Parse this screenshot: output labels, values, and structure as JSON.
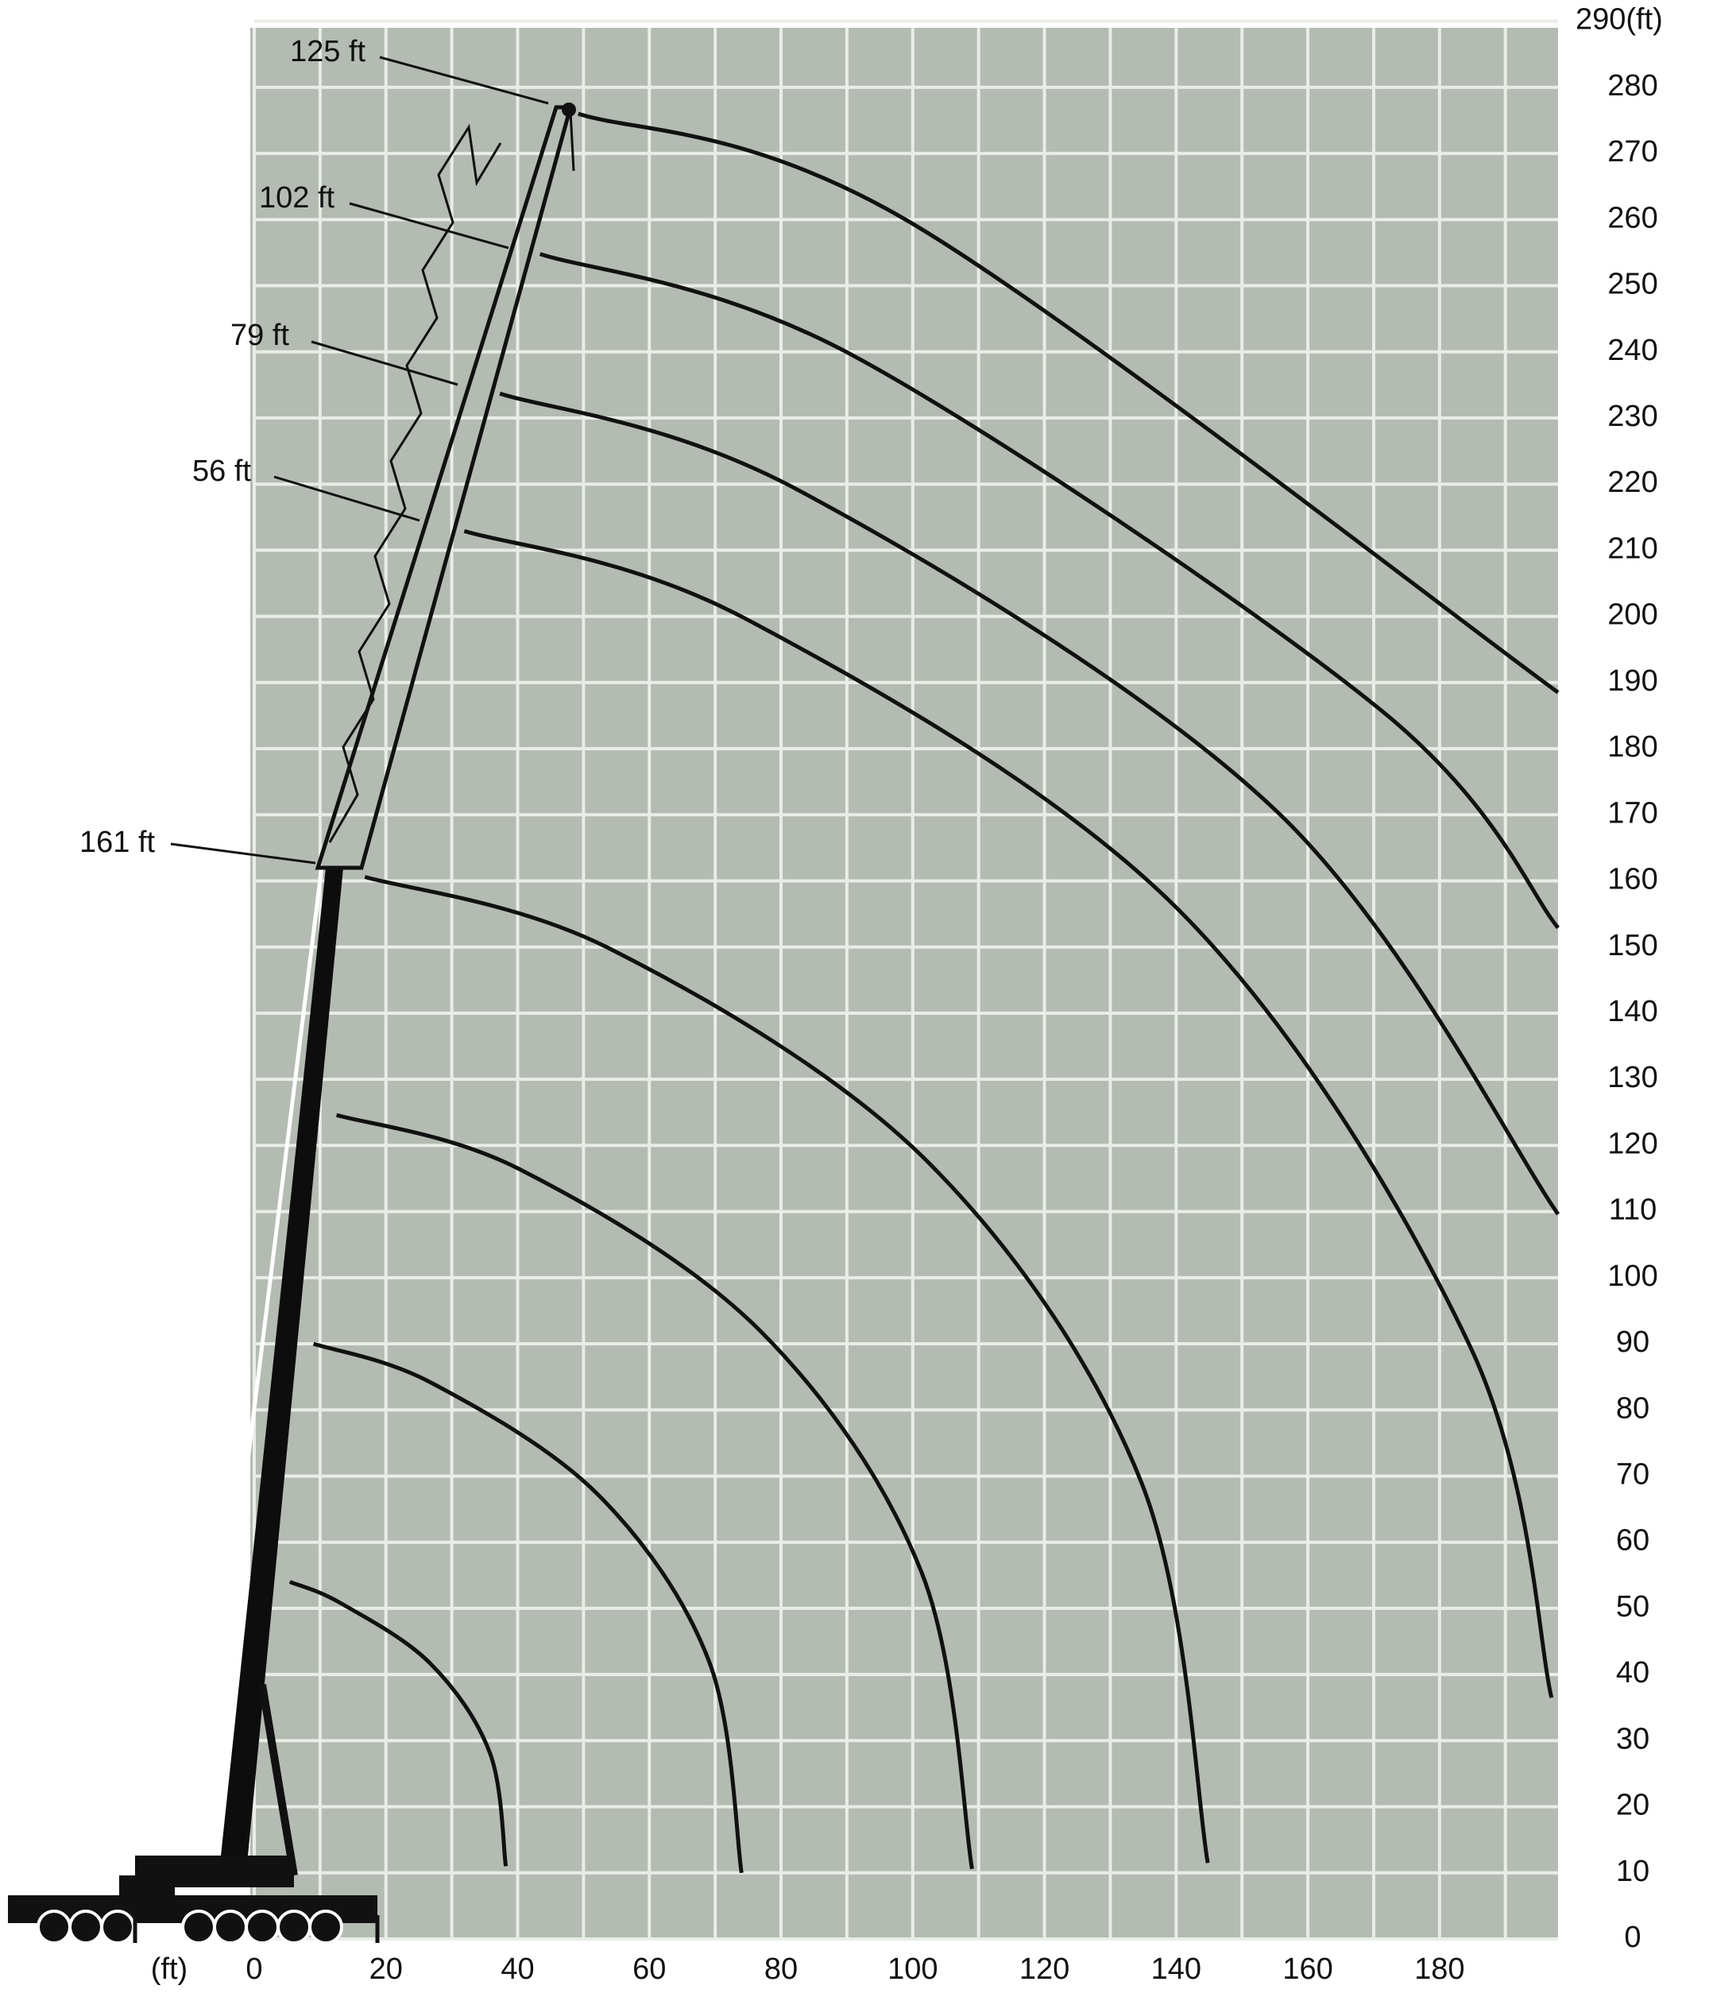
{
  "chart_data": {
    "type": "range",
    "x_unit_label": "(ft)",
    "xlim": [
      0,
      198
    ],
    "ylim": [
      0,
      289
    ],
    "xticks": [
      0,
      20,
      40,
      60,
      80,
      100,
      120,
      140,
      160,
      180
    ],
    "xminorticks": [
      10,
      30,
      50,
      70,
      90,
      110,
      130,
      150,
      170,
      190
    ],
    "yticks": [
      0,
      10,
      20,
      30,
      40,
      50,
      60,
      70,
      80,
      90,
      100,
      110,
      120,
      130,
      140,
      150,
      160,
      170,
      180,
      190,
      200,
      210,
      220,
      230,
      240,
      250,
      260,
      270,
      280,
      {
        "value": 290,
        "label": "290(ft)"
      }
    ],
    "grid": true,
    "grid_color": "#e9ede7",
    "background": "#b4bbb2",
    "curve_color": "#111111",
    "annotations": [
      "125 ft",
      "102 ft",
      "79 ft",
      "56 ft",
      "161 ft"
    ],
    "curves": [
      {
        "x": [
          5.4,
          13.1,
          26.7,
          35.8,
          38.2
        ],
        "y": [
          54,
          50.8,
          41.7,
          28.1,
          11
        ]
      },
      {
        "x": [
          9,
          26.9,
          52.2,
          69.1,
          74
        ],
        "y": [
          90,
          84.1,
          67.2,
          41.9,
          10
        ]
      },
      {
        "x": [
          12.5,
          40.3,
          76.9,
          101.4,
          109
        ],
        "y": [
          124.6,
          116.4,
          91.9,
          55.3,
          10.6
        ]
      },
      {
        "x": [
          16.8,
          54.1,
          102.4,
          134.7,
          144.8
        ],
        "y": [
          160.6,
          149.7,
          117.4,
          69.1,
          11.5
        ]
      },
      {
        "x": [
          31.9,
          74.7,
          140.5,
          184.6,
          197
        ],
        "y": [
          212.9,
          199.6,
          155.5,
          89.7,
          36.5
        ]
      },
      {
        "x": [
          37.3,
          82.8,
          155.4,
          198
        ],
        "y": [
          233.7,
          219,
          170.4,
          109.6
        ]
      },
      {
        "x": [
          43.4,
          91.2,
          171,
          198
        ],
        "y": [
          254.8,
          239.3,
          185.9,
          152.9
        ]
      },
      {
        "x": [
          49.2,
          99.6,
          198
        ],
        "y": [
          276,
          259.6,
          188.5
        ]
      }
    ]
  }
}
